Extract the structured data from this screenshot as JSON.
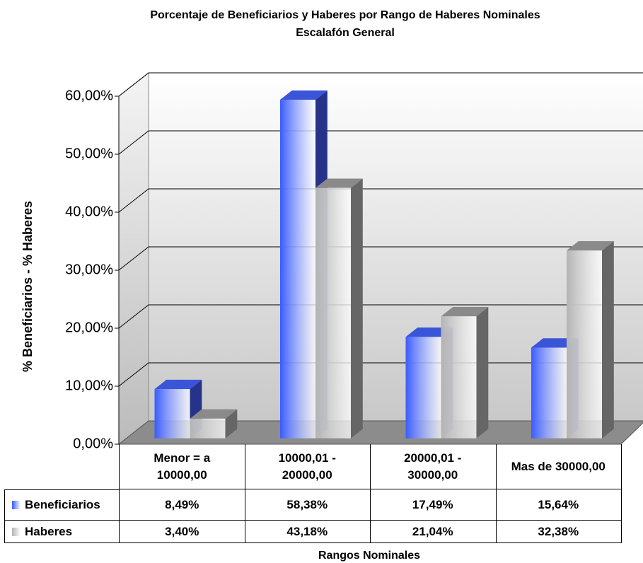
{
  "chart_data": {
    "type": "bar3d",
    "title": "Porcentaje de Beneficiarios y Haberes por Rango de Haberes Nominales",
    "subtitle": "Escalafón General",
    "y_label": "% Beneficiarios - % Haberes",
    "x_label": "Rangos Nominales",
    "categories": [
      "Menor = a 10000,00",
      "10000,01 - 20000,00",
      "20000,01 - 30000,00",
      "Mas de 30000,00"
    ],
    "series": [
      {
        "name": "Beneficiarios",
        "color": "#3a5cff",
        "values": [
          8.49,
          58.38,
          17.49,
          15.64
        ],
        "value_labels": [
          "8,49%",
          "58,38%",
          "17,49%",
          "15,64%"
        ]
      },
      {
        "name": "Haberes",
        "color": "#b4b4b4",
        "values": [
          3.4,
          43.18,
          21.04,
          32.38
        ],
        "value_labels": [
          "3,40%",
          "43,18%",
          "21,04%",
          "32,38%"
        ]
      }
    ],
    "ylim": [
      0,
      60
    ],
    "yticks": [
      {
        "value": 0,
        "label": "0,00%"
      },
      {
        "value": 10,
        "label": "10,00%"
      },
      {
        "value": 20,
        "label": "20,00%"
      },
      {
        "value": 30,
        "label": "30,00%"
      },
      {
        "value": 40,
        "label": "40,00%"
      },
      {
        "value": 50,
        "label": "50,00%"
      },
      {
        "value": 60,
        "label": "60,00%"
      }
    ],
    "grid": true
  }
}
